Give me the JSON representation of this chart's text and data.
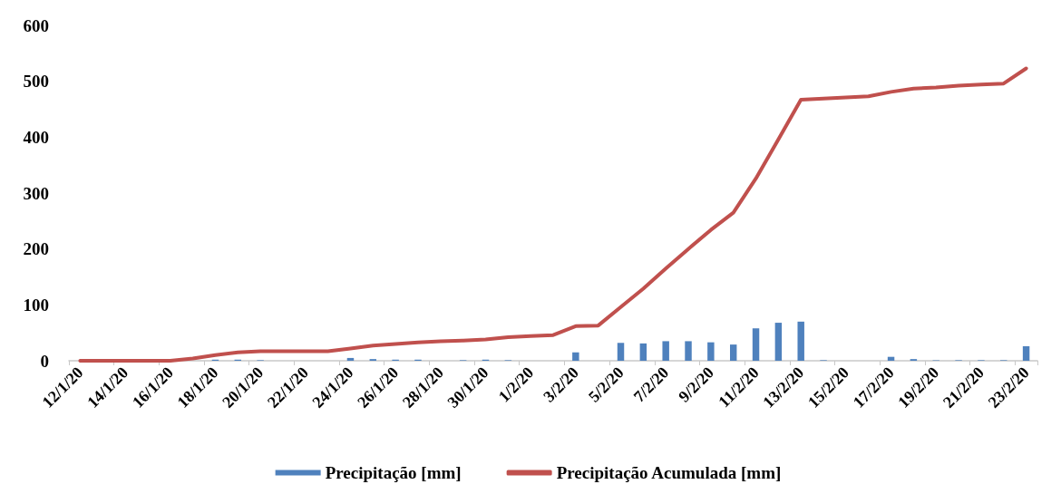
{
  "chart_data": {
    "type": "bar",
    "categories": [
      "12/1/20",
      null,
      "14/1/20",
      null,
      "16/1/20",
      null,
      "18/1/20",
      null,
      "20/1/20",
      null,
      "22/1/20",
      null,
      "24/1/20",
      null,
      "26/1/20",
      null,
      "28/1/20",
      null,
      "30/1/20",
      null,
      "1/2/20",
      null,
      "3/2/20",
      null,
      "5/2/20",
      null,
      "7/2/20",
      null,
      "9/2/20",
      null,
      "11/2/20",
      null,
      "13/2/20",
      null,
      "15/2/20",
      null,
      "17/2/20",
      null,
      "19/2/20",
      null,
      "21/2/20",
      null,
      "23/2/20"
    ],
    "series": [
      {
        "name": "Precipitação [mm]",
        "color": "#4f81bd",
        "values": [
          0,
          0,
          0,
          0,
          0,
          0,
          2,
          2,
          1,
          0,
          0,
          0,
          5,
          3,
          2,
          2,
          0,
          1,
          2,
          1,
          0,
          0,
          15,
          0,
          32,
          31,
          35,
          35,
          33,
          29,
          58,
          68,
          70,
          1,
          0,
          0,
          7,
          3,
          1,
          1,
          1,
          1,
          26
        ]
      },
      {
        "name": "Precipitação Acumulada [mm]",
        "type": "line",
        "color": "#c0504d",
        "values": [
          0,
          0,
          0,
          0,
          0,
          4,
          10,
          15,
          17,
          17,
          17,
          17,
          22,
          27,
          30,
          33,
          35,
          36,
          38,
          42,
          44,
          46,
          62,
          63,
          96,
          129,
          165,
          200,
          234,
          265,
          326,
          396,
          467,
          469,
          471,
          473,
          481,
          487,
          489,
          492,
          494,
          496,
          523
        ]
      }
    ],
    "ylim": [
      0,
      600
    ],
    "yticks": [
      0,
      100,
      200,
      300,
      400,
      500,
      600
    ],
    "grid": false,
    "legend": "bottom",
    "line_style": "solid",
    "marker": "none"
  }
}
